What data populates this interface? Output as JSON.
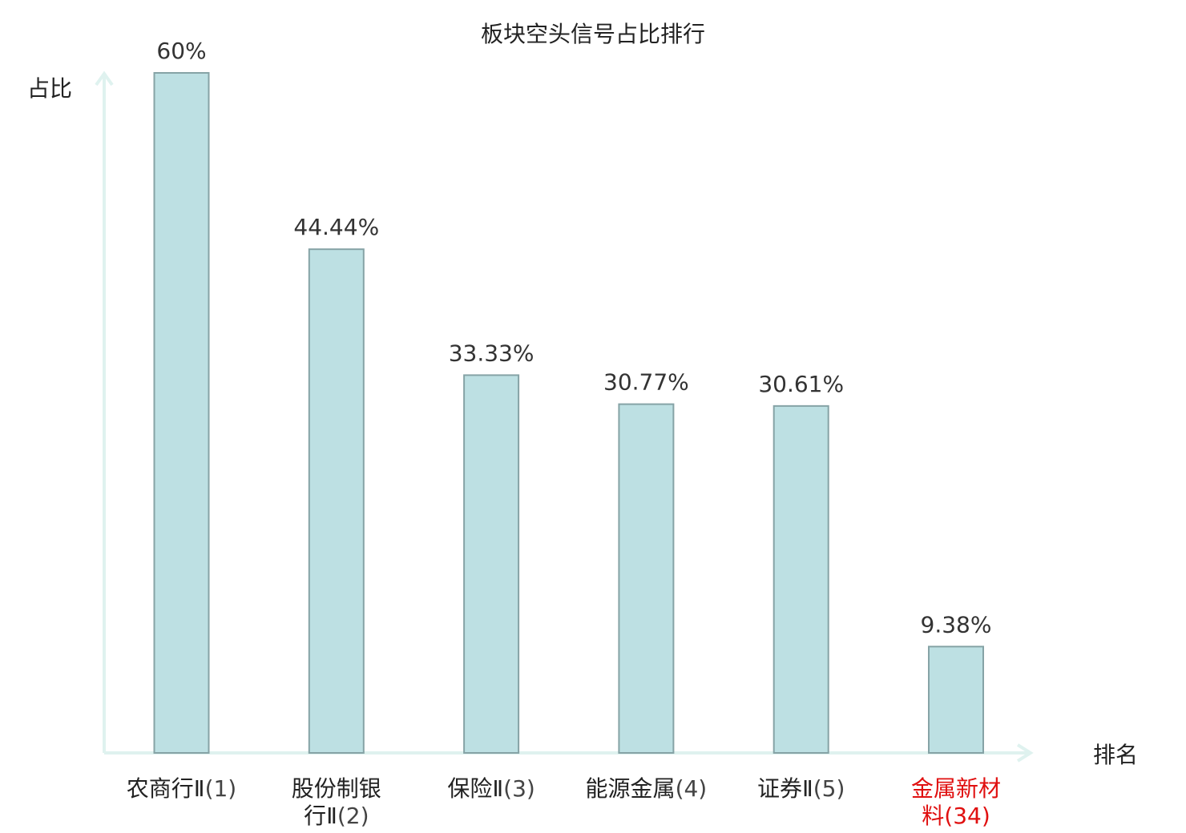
{
  "chart_data": {
    "type": "bar",
    "title": "板块空头信号占比排行",
    "ylabel": "占比",
    "xlabel": "排名",
    "ylim": [
      0,
      60
    ],
    "grid": false,
    "categories": [
      {
        "lines": [
          "农商行Ⅱ"
        ],
        "rank": "(1)",
        "highlight": false
      },
      {
        "lines": [
          "股份制银",
          "行Ⅱ"
        ],
        "rank": "(2)",
        "highlight": false
      },
      {
        "lines": [
          "保险Ⅱ"
        ],
        "rank": "(3)",
        "highlight": false
      },
      {
        "lines": [
          "能源金属"
        ],
        "rank": "(4)",
        "highlight": false
      },
      {
        "lines": [
          "证券Ⅱ"
        ],
        "rank": "(5)",
        "highlight": false
      },
      {
        "lines": [
          "金属新材",
          "料"
        ],
        "rank": "(34)",
        "highlight": true
      }
    ],
    "values": [
      60,
      44.44,
      33.33,
      30.77,
      30.61,
      9.38
    ],
    "value_labels": [
      "60%",
      "44.44%",
      "33.33%",
      "30.77%",
      "30.61%",
      "9.38%"
    ],
    "colors": {
      "bar_fill": "#bde0e3",
      "bar_stroke": "#86a3a6",
      "axis": "#dff2ef",
      "text": "#222222",
      "rank_text": "#444444",
      "highlight": "#e01010"
    }
  }
}
